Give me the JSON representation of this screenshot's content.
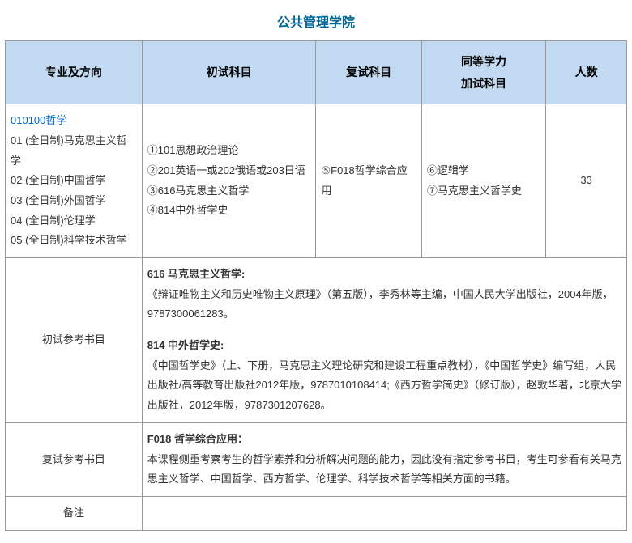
{
  "title": "公共管理学院",
  "headers": {
    "col1": "专业及方向",
    "col2": "初试科目",
    "col3": "复试科目",
    "col4_line1": "同等学力",
    "col4_line2": "加试科目",
    "col5": "人数"
  },
  "row1": {
    "major_link": "010100哲学",
    "dir1": "01 (全日制)马克思主义哲学",
    "dir2": "02 (全日制)中国哲学",
    "dir3": "03 (全日制)外国哲学",
    "dir4": "04 (全日制)伦理学",
    "dir5": "05 (全日制)科学技术哲学",
    "prelim1": "①101思想政治理论",
    "prelim2": "②201英语一或202俄语或203日语",
    "prelim3": "③616马克思主义哲学",
    "prelim4": "④814中外哲学史",
    "retest": "⑤F018哲学综合应用",
    "add1": "⑥逻辑学",
    "add2": "⑦马克思主义哲学史",
    "count": "33"
  },
  "books_prelim": {
    "label": "初试参考书目",
    "b1_title": "616 马克思主义哲学:",
    "b1_text": "《辩证唯物主义和历史唯物主义原理》（第五版），李秀林等主编，中国人民大学出版社，2004年版，9787300061283。",
    "b2_title": "814 中外哲学史:",
    "b2_text": "《中国哲学史》（上、下册，马克思主义理论研究和建设工程重点教材），《中国哲学史》编写组，人民出版社/高等教育出版社2012年版，9787010108414;《西方哲学简史》（修订版），赵敦华著，北京大学出版社，2012年版，9787301207628。"
  },
  "books_retest": {
    "label": "复试参考书目",
    "b1_title": "F018 哲学综合应用：",
    "b1_text": "本课程侧重考察考生的哲学素养和分析解决问题的能力，因此没有指定参考书目，考生可参看有关马克思主义哲学、中国哲学、西方哲学、伦理学、科学技术哲学等相关方面的书籍。"
  },
  "remark_label": "备注",
  "colors": {
    "title_color": "#006699",
    "header_bg": "#c2daf1",
    "border": "#999999",
    "link": "#0066cc",
    "text": "#333333"
  }
}
